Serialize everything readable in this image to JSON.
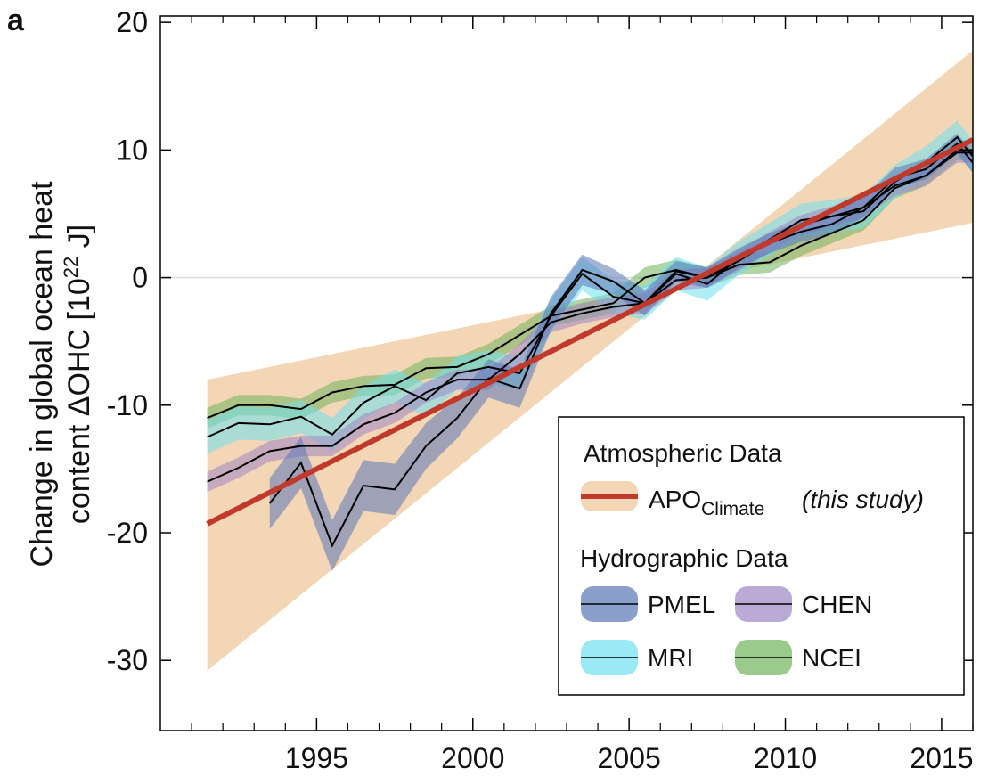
{
  "chart_data": {
    "type": "line",
    "panel_label": "a",
    "ylabel_line1": "Change in global ocean heat",
    "ylabel_line2": "content  ΔOHC  [10",
    "ylabel_sup": "22",
    "ylabel_end": " J]",
    "xlim": [
      1990,
      2016
    ],
    "ylim": [
      -35.5,
      20.5
    ],
    "xticks": [
      1995,
      2000,
      2005,
      2010,
      2015
    ],
    "xticks_minor": [
      1991,
      1992,
      1993,
      1994,
      1996,
      1997,
      1998,
      1999,
      2001,
      2002,
      2003,
      2004,
      2006,
      2007,
      2008,
      2009,
      2011,
      2012,
      2013,
      2014,
      2016
    ],
    "yticks": [
      -30,
      -20,
      -10,
      0,
      10,
      20
    ],
    "zero_line": true,
    "x": [
      1991.5,
      1992.5,
      1993.5,
      1994.5,
      1995.5,
      1996.5,
      1997.5,
      1998.5,
      1999.5,
      2000.5,
      2001.5,
      2002.5,
      2003.5,
      2004.5,
      2005.5,
      2006.5,
      2007.5,
      2008.5,
      2009.5,
      2010.5,
      2011.5,
      2012.5,
      2013.5,
      2014.5,
      2015.5,
      2016
    ],
    "series": [
      {
        "name": "NCEI",
        "color": "#000000",
        "band_color": "#6fb55c",
        "values": [
          -11,
          -10,
          -10,
          -10.3,
          -9,
          -8.5,
          -8.4,
          -7.1,
          -7,
          -6,
          -4.5,
          -3,
          -2.5,
          -2,
          0,
          0.6,
          0,
          1,
          1.2,
          2.5,
          3.5,
          4.5,
          7,
          8,
          10,
          10
        ],
        "errors": [
          0.8,
          0.8,
          0.8,
          0.8,
          0.8,
          0.8,
          0.8,
          0.8,
          0.8,
          0.8,
          0.8,
          0.8,
          0.8,
          0.8,
          0.8,
          0.8,
          0.8,
          0.8,
          0.8,
          0.8,
          0.8,
          0.8,
          0.8,
          0.8,
          0.8,
          0.8
        ]
      },
      {
        "name": "MRI",
        "color": "#000000",
        "band_color": "#6fe0ef",
        "values": [
          -12.5,
          -11.4,
          -11.5,
          -10.9,
          -12.3,
          -9.8,
          -8.5,
          -9.6,
          -7.5,
          -7,
          -7.5,
          -3,
          0.3,
          -1.5,
          -2,
          0.3,
          -0.5,
          1.5,
          3,
          4.5,
          4.8,
          5.2,
          7.5,
          9,
          11,
          9.5
        ],
        "errors": [
          1.3,
          1.3,
          1.3,
          1.3,
          1.3,
          1.3,
          1.3,
          1.3,
          1.3,
          1.3,
          1.3,
          1.3,
          1.3,
          1.3,
          1.3,
          1.3,
          1.3,
          1.3,
          1.3,
          1.3,
          1.3,
          1.3,
          1.3,
          1.3,
          1.3,
          1.3
        ]
      },
      {
        "name": "CHEN",
        "color": "#000000",
        "band_color": "#9f86c4",
        "values": [
          -16,
          -14.9,
          -13.6,
          -13.2,
          -13.2,
          -11.5,
          -10.6,
          -9,
          -8,
          -8,
          -6,
          -3.5,
          -2.8,
          -2.3,
          -2,
          -0.2,
          0,
          1.3,
          2.8,
          4.1,
          4.8,
          5.5,
          7.2,
          8,
          9.8,
          9.8
        ],
        "errors": [
          0.8,
          0.8,
          0.8,
          0.8,
          0.8,
          0.8,
          0.8,
          0.8,
          0.8,
          0.8,
          0.8,
          0.8,
          0.8,
          0.8,
          0.8,
          0.8,
          0.8,
          0.8,
          0.8,
          0.8,
          0.8,
          0.8,
          0.8,
          0.8,
          0.8,
          0.8
        ]
      },
      {
        "name": "PMEL",
        "color": "#000000",
        "band_color": "#5a76b6",
        "values": [
          null,
          null,
          -17.7,
          -14.5,
          -21,
          -16.3,
          -16.6,
          -13.2,
          -11,
          -7.9,
          -8.7,
          -2.8,
          0.6,
          -0.3,
          -2,
          0.5,
          0,
          1.5,
          2.7,
          3.6,
          4.2,
          5.5,
          7.8,
          8.5,
          10.5,
          9
        ],
        "errors": [
          null,
          null,
          2,
          2,
          2,
          2,
          2,
          1.8,
          1.6,
          1.5,
          1.5,
          1.3,
          1.2,
          1,
          1,
          0.8,
          0.8,
          0.8,
          0.8,
          0.8,
          0.8,
          0.8,
          0.8,
          0.8,
          0.8,
          0.8
        ]
      }
    ],
    "apo": {
      "name": "APO",
      "subscript": "Climate",
      "note": "(this study)",
      "color": "#c0392b",
      "band_color": "#f3d6b5",
      "x": [
        1991.5,
        2016
      ],
      "values": [
        -19.3,
        10.8
      ],
      "band_shallow": [
        -8,
        4.3
      ],
      "band_steep": [
        -30.8,
        17.8
      ]
    },
    "legend": {
      "atmospheric_title": "Atmospheric Data",
      "hydrographic_title": "Hydrographic Data"
    }
  }
}
